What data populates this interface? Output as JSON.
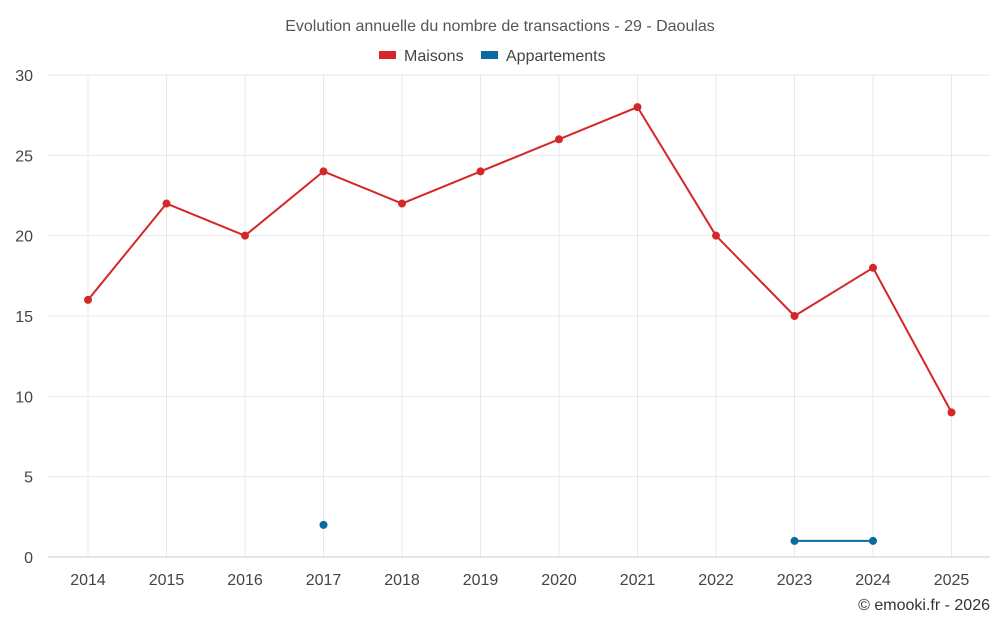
{
  "chart_data": {
    "type": "line",
    "title": "Evolution annuelle du nombre de transactions - 29 - Daoulas",
    "xlabel": "",
    "ylabel": "",
    "categories": [
      "2014",
      "2015",
      "2016",
      "2017",
      "2018",
      "2019",
      "2020",
      "2021",
      "2022",
      "2023",
      "2024",
      "2025"
    ],
    "ylim": [
      0,
      30
    ],
    "yticks": [
      0,
      5,
      10,
      15,
      20,
      25,
      30
    ],
    "grid": true,
    "legend_position": "top-center",
    "series": [
      {
        "name": "Maisons",
        "color": "#d62728",
        "values": [
          16,
          22,
          20,
          24,
          22,
          24,
          26,
          28,
          20,
          15,
          18,
          9
        ]
      },
      {
        "name": "Appartements",
        "color": "#0a6aa1",
        "values": [
          null,
          null,
          null,
          2,
          null,
          null,
          null,
          null,
          null,
          1,
          1,
          null
        ]
      }
    ]
  },
  "credit": "© emooki.fr - 2026"
}
